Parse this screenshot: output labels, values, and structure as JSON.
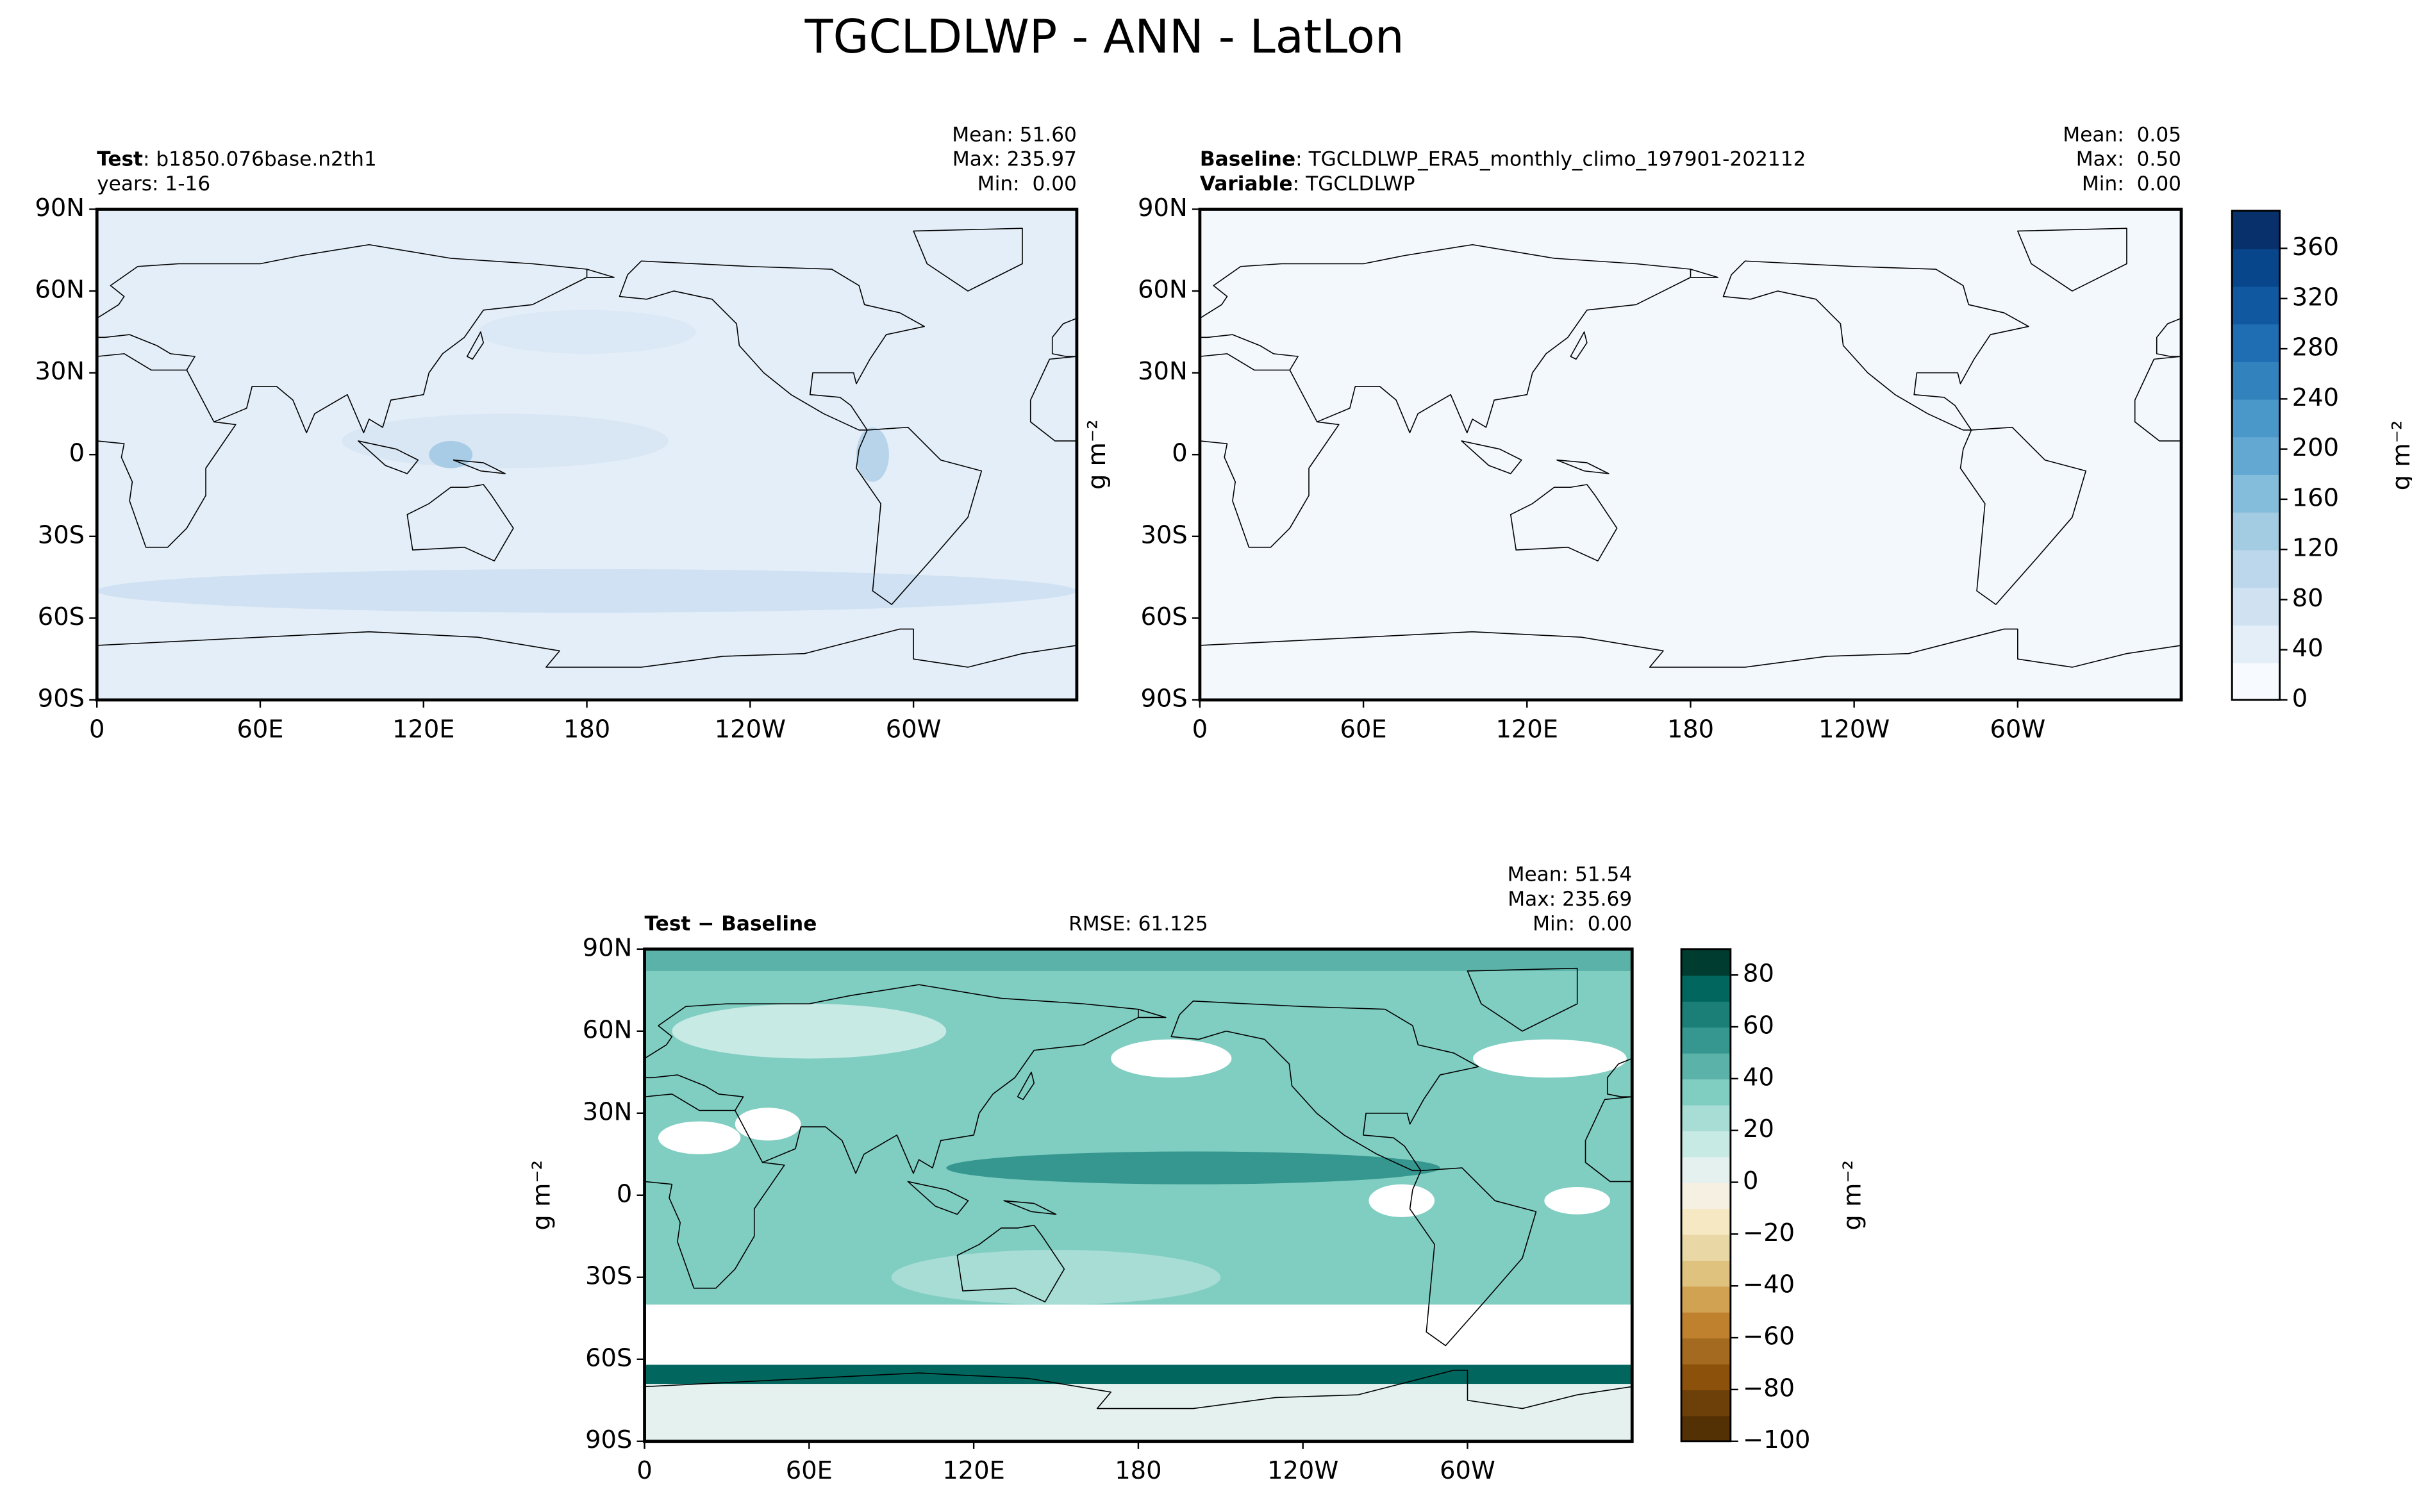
{
  "title": "TGCLDLWP - ANN - LatLon",
  "chart_data": [
    {
      "type": "map",
      "heading_bold": "Test",
      "heading": ": b1850.076base.n2th1",
      "subheading": "years: 1-16",
      "stats": [
        "Mean: 51.60",
        "Max: 235.97",
        "Min:  0.00"
      ],
      "fill": "#e4eef8",
      "xlim": [
        0,
        360
      ],
      "ylim": [
        -90,
        90
      ],
      "xticks": [
        0,
        {
          "value": 60,
          "label": "60E"
        },
        {
          "value": 120,
          "label": "120E"
        },
        180,
        {
          "value": 240,
          "label": "120W"
        },
        {
          "value": 300,
          "label": "60W"
        }
      ],
      "yticks": [
        {
          "value": 90,
          "label": "90N"
        },
        {
          "value": 60,
          "label": "60N"
        },
        {
          "value": 30,
          "label": "30N"
        },
        0,
        {
          "value": -30,
          "label": "30S"
        },
        {
          "value": -60,
          "label": "60S"
        },
        {
          "value": -90,
          "label": "90S"
        }
      ]
    },
    {
      "type": "map",
      "heading_bold": "Baseline",
      "heading": ": TGCLDLWP_ERA5_monthly_climo_197901-202112",
      "subheading_bold": "Variable",
      "subheading": ": TGCLDLWP",
      "stats": [
        "Mean:  0.05",
        "Max:  0.50",
        "Min:  0.00"
      ],
      "fill": "#f3f8fd",
      "ylabel": "g m⁻²",
      "xlim": [
        0,
        360
      ],
      "ylim": [
        -90,
        90
      ],
      "xticks": [
        0,
        {
          "value": 60,
          "label": "60E"
        },
        {
          "value": 120,
          "label": "120E"
        },
        180,
        {
          "value": 240,
          "label": "120W"
        },
        {
          "value": 300,
          "label": "60W"
        }
      ],
      "yticks": [
        {
          "value": 90,
          "label": "90N"
        },
        {
          "value": 60,
          "label": "60N"
        },
        {
          "value": 30,
          "label": "30N"
        },
        0,
        {
          "value": -30,
          "label": "30S"
        },
        {
          "value": -60,
          "label": "60S"
        },
        {
          "value": -90,
          "label": "90S"
        }
      ]
    },
    {
      "type": "colorbar",
      "label": "g m⁻²",
      "ylim": [
        0,
        390
      ],
      "yticks": [
        0,
        40,
        80,
        120,
        160,
        200,
        240,
        280,
        320,
        360
      ],
      "colors": [
        "#f7fbff",
        "#e3eef9",
        "#d0e1f2",
        "#bcd7eb",
        "#a3cce3",
        "#84bcdb",
        "#63a8d3",
        "#4a98c9",
        "#3282be",
        "#1f6eb3",
        "#1059a1",
        "#08468b",
        "#08306b"
      ]
    },
    {
      "type": "map",
      "heading_bold": "Test − Baseline",
      "center_text": "RMSE: 61.125",
      "stats": [
        "Mean: 51.54",
        "Max: 235.69",
        "Min:  0.00"
      ],
      "fill": "#80cdc1",
      "ylabel": "g m⁻²",
      "xlim": [
        0,
        360
      ],
      "ylim": [
        -90,
        90
      ],
      "xticks": [
        0,
        {
          "value": 60,
          "label": "60E"
        },
        {
          "value": 120,
          "label": "120E"
        },
        180,
        {
          "value": 240,
          "label": "120W"
        },
        {
          "value": 300,
          "label": "60W"
        }
      ],
      "yticks": [
        {
          "value": 90,
          "label": "90N"
        },
        {
          "value": 60,
          "label": "60N"
        },
        {
          "value": 30,
          "label": "30N"
        },
        0,
        {
          "value": -30,
          "label": "30S"
        },
        {
          "value": -60,
          "label": "60S"
        },
        {
          "value": -90,
          "label": "90S"
        }
      ]
    },
    {
      "type": "colorbar",
      "label": "g m⁻²",
      "ylim": [
        -100,
        90
      ],
      "yticks": [
        {
          "value": -100,
          "label": "−100"
        },
        {
          "value": -80,
          "label": "−80"
        },
        {
          "value": -60,
          "label": "−60"
        },
        {
          "value": -40,
          "label": "−40"
        },
        {
          "value": -20,
          "label": "−20"
        },
        0,
        20,
        40,
        60,
        80
      ],
      "colors": [
        "#543005",
        "#6d3f09",
        "#8c510a",
        "#a46a1f",
        "#bf812d",
        "#d0a251",
        "#dfc27d",
        "#ead7a6",
        "#f6e8c3",
        "#f5f0e2",
        "#e4f1ef",
        "#c7eae5",
        "#a7ddd5",
        "#80cdc1",
        "#5ab2a8",
        "#35978f",
        "#1c7f77",
        "#01665e",
        "#003c30"
      ]
    }
  ]
}
